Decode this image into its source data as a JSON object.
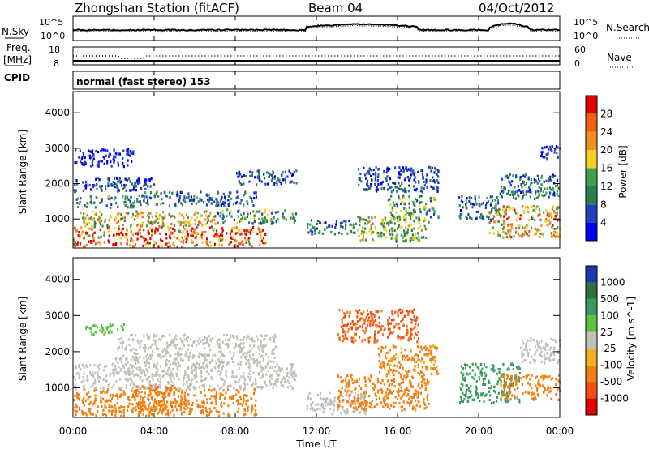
{
  "header": {
    "station": "Zhongshan Station (fitACF)",
    "beam": "Beam 04",
    "date": "04/Oct/2012"
  },
  "noise_panel": {
    "left_label": "N.Sky",
    "right_label": "N.Search",
    "left_ticks": [
      "10^5",
      "10^0"
    ],
    "right_ticks": [
      "10^5",
      "10^0"
    ]
  },
  "freq_panel": {
    "left_label_1": "Freq.",
    "left_label_2": "[MHz]",
    "right_label": "Nave",
    "left_ticks": [
      "18",
      "8"
    ],
    "right_ticks": [
      "60",
      "0"
    ]
  },
  "cpid_panel": {
    "label": "CPID",
    "text": "normal (fast stereo) 153"
  },
  "chart_data": [
    {
      "type": "heatmap",
      "name": "power",
      "ylabel": "Slant Range [km]",
      "ylim": [
        180,
        4600
      ],
      "yticks": [
        "1000",
        "2000",
        "3000",
        "4000"
      ],
      "xlim_hours": [
        0,
        24
      ],
      "colorbar": {
        "label": "Power [dB]",
        "ticks": [
          "4",
          "8",
          "12",
          "16",
          "20",
          "24",
          "28"
        ],
        "range": [
          0,
          32
        ],
        "colors": [
          "#0000f0",
          "#2040c0",
          "#2e7e50",
          "#3ea050",
          "#f0d020",
          "#f09020",
          "#f06010",
          "#e00000"
        ]
      },
      "regions": [
        {
          "t": [
            0.0,
            9.5
          ],
          "r": [
            250,
            800
          ],
          "value": 26
        },
        {
          "t": [
            0.3,
            7.0
          ],
          "r": [
            800,
            1250
          ],
          "value": 18
        },
        {
          "t": [
            7.0,
            11.0
          ],
          "r": [
            900,
            1300
          ],
          "value": 12
        },
        {
          "t": [
            0.0,
            3.0
          ],
          "r": [
            1350,
            1700
          ],
          "value": 11
        },
        {
          "t": [
            3.0,
            9.0
          ],
          "r": [
            1400,
            1800
          ],
          "value": 8
        },
        {
          "t": [
            8.0,
            11.0
          ],
          "r": [
            2000,
            2400
          ],
          "value": 7
        },
        {
          "t": [
            0.0,
            4.0
          ],
          "r": [
            1800,
            2200
          ],
          "value": 6
        },
        {
          "t": [
            0.0,
            3.0
          ],
          "r": [
            2500,
            3000
          ],
          "value": 4
        },
        {
          "t": [
            11.5,
            14.0
          ],
          "r": [
            600,
            1000
          ],
          "value": 9
        },
        {
          "t": [
            14.0,
            17.5
          ],
          "r": [
            400,
            1100
          ],
          "value": 15
        },
        {
          "t": [
            15.5,
            18.0
          ],
          "r": [
            1000,
            1700
          ],
          "value": 13
        },
        {
          "t": [
            14.0,
            18.0
          ],
          "r": [
            1800,
            2500
          ],
          "value": 6
        },
        {
          "t": [
            19.0,
            21.0
          ],
          "r": [
            1000,
            1700
          ],
          "value": 9
        },
        {
          "t": [
            20.5,
            24.0
          ],
          "r": [
            500,
            1400
          ],
          "value": 20
        },
        {
          "t": [
            21.0,
            24.0
          ],
          "r": [
            1600,
            2300
          ],
          "value": 8
        },
        {
          "t": [
            23.0,
            24.0
          ],
          "r": [
            2700,
            3100
          ],
          "value": 5
        }
      ]
    },
    {
      "type": "heatmap",
      "name": "velocity",
      "ylabel": "Slant Range [km]",
      "ylim": [
        180,
        4600
      ],
      "yticks": [
        "1000",
        "2000",
        "3000",
        "4000"
      ],
      "xlabel": "Time UT",
      "xticks": [
        "00:00",
        "04:00",
        "08:00",
        "12:00",
        "16:00",
        "20:00",
        "00:00"
      ],
      "xlim_hours": [
        0,
        24
      ],
      "colorbar": {
        "label": "Velocity [m s^-1]",
        "ticks": [
          "1000",
          "500",
          "100",
          "25",
          "-25",
          "-100",
          "-500",
          "-1000"
        ],
        "colors": [
          "#1a3ab0",
          "#2e7040",
          "#3a9a60",
          "#5cc040",
          "#c0c0b8",
          "#f0b020",
          "#f08010",
          "#f05010",
          "#e00000"
        ]
      },
      "regions": [
        {
          "t": [
            0.0,
            9.0
          ],
          "r": [
            250,
            1000
          ],
          "value": -150
        },
        {
          "t": [
            0.0,
            11.0
          ],
          "r": [
            1000,
            1700
          ],
          "value": 0
        },
        {
          "t": [
            2.0,
            10.0
          ],
          "r": [
            1700,
            2500
          ],
          "value": 5
        },
        {
          "t": [
            3.0,
            5.0
          ],
          "r": [
            400,
            1100
          ],
          "value": -400
        },
        {
          "t": [
            0.5,
            2.5
          ],
          "r": [
            2500,
            2800
          ],
          "value": 60
        },
        {
          "t": [
            11.5,
            14.5
          ],
          "r": [
            300,
            900
          ],
          "value": 0
        },
        {
          "t": [
            13.0,
            17.5
          ],
          "r": [
            400,
            1400
          ],
          "value": -300
        },
        {
          "t": [
            15.0,
            18.0
          ],
          "r": [
            1400,
            2200
          ],
          "value": -120
        },
        {
          "t": [
            19.0,
            22.0
          ],
          "r": [
            600,
            1700
          ],
          "value": 200
        },
        {
          "t": [
            21.0,
            24.0
          ],
          "r": [
            700,
            1400
          ],
          "value": -200
        },
        {
          "t": [
            22.0,
            24.0
          ],
          "r": [
            1700,
            2400
          ],
          "value": 0
        },
        {
          "t": [
            13.0,
            17.0
          ],
          "r": [
            2300,
            3200
          ],
          "value": -600
        }
      ]
    }
  ]
}
